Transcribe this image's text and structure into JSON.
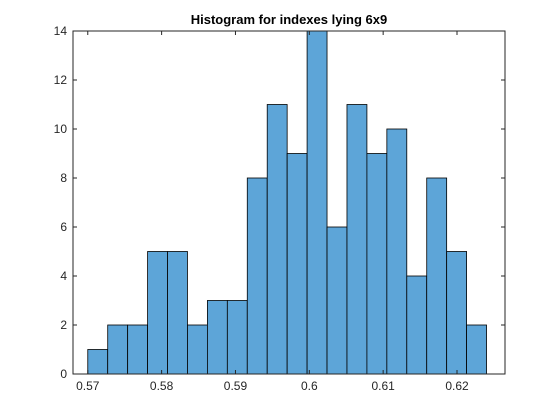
{
  "chart_data": {
    "type": "bar",
    "title": "Histogram for indexes lying 6x9",
    "xlabel": "",
    "ylabel": "",
    "bin_edges": [
      0.57,
      0.5727,
      0.5754,
      0.5781,
      0.5808,
      0.5835,
      0.5862,
      0.5889,
      0.5916,
      0.5943,
      0.597,
      0.5997,
      0.6024,
      0.6051,
      0.6078,
      0.6105,
      0.6132,
      0.6159,
      0.6186,
      0.6213,
      0.624
    ],
    "values": [
      1,
      2,
      2,
      5,
      5,
      2,
      3,
      3,
      8,
      11,
      9,
      14,
      6,
      11,
      9,
      10,
      4,
      8,
      5,
      2
    ],
    "xlim": [
      0.568,
      0.6265
    ],
    "ylim": [
      0,
      14
    ],
    "x_ticks": [
      0.57,
      0.58,
      0.59,
      0.6,
      0.61,
      0.62
    ],
    "x_tick_labels": [
      "0.57",
      "0.58",
      "0.59",
      "0.6",
      "0.61",
      "0.62"
    ],
    "y_ticks": [
      0,
      2,
      4,
      6,
      8,
      10,
      12,
      14
    ],
    "y_tick_labels": [
      "0",
      "2",
      "4",
      "6",
      "8",
      "10",
      "12",
      "14"
    ],
    "grid": false,
    "bar_color": "#5DA5D8",
    "edge_color": "#000000"
  }
}
